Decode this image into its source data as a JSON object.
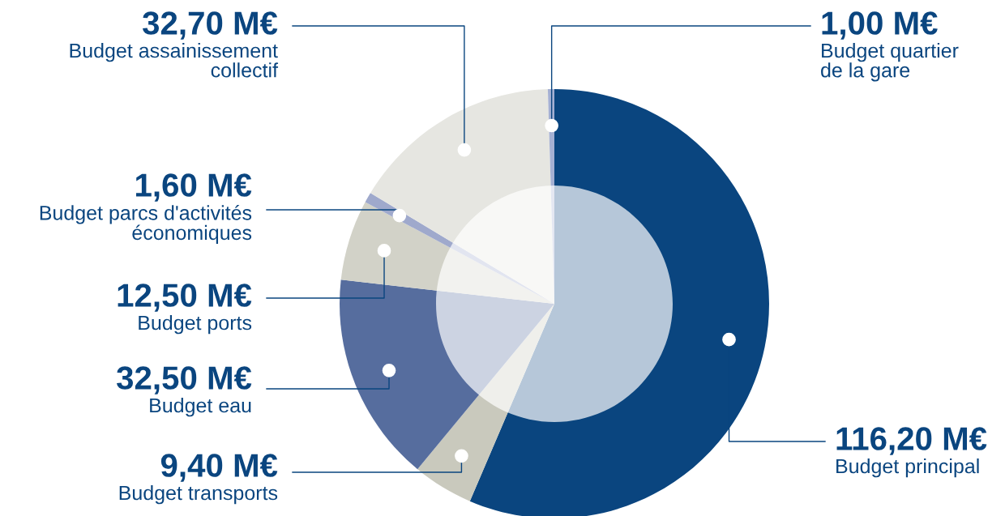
{
  "chart_data": {
    "type": "donut",
    "categories": [
      "Budget principal",
      "Budget transports",
      "Budget eau",
      "Budget ports",
      "Budget parcs d'activités\néconomiques",
      "Budget assainissement\ncollectif",
      "Budget quartier\nde la gare"
    ],
    "values": [
      116.2,
      9.4,
      32.5,
      12.5,
      1.6,
      32.7,
      1.0
    ],
    "value_labels": [
      "116,20 M€",
      "9,40 M€",
      "32,50 M€",
      "12,50 M€",
      "1,60 M€",
      "32,70 M€",
      "1,00 M€"
    ],
    "colors": [
      "#0a457f",
      "#c9c9bd",
      "#566d9e",
      "#d2d2c8",
      "#9fa9cc",
      "#e6e6e1",
      "#a5b0d3"
    ]
  }
}
